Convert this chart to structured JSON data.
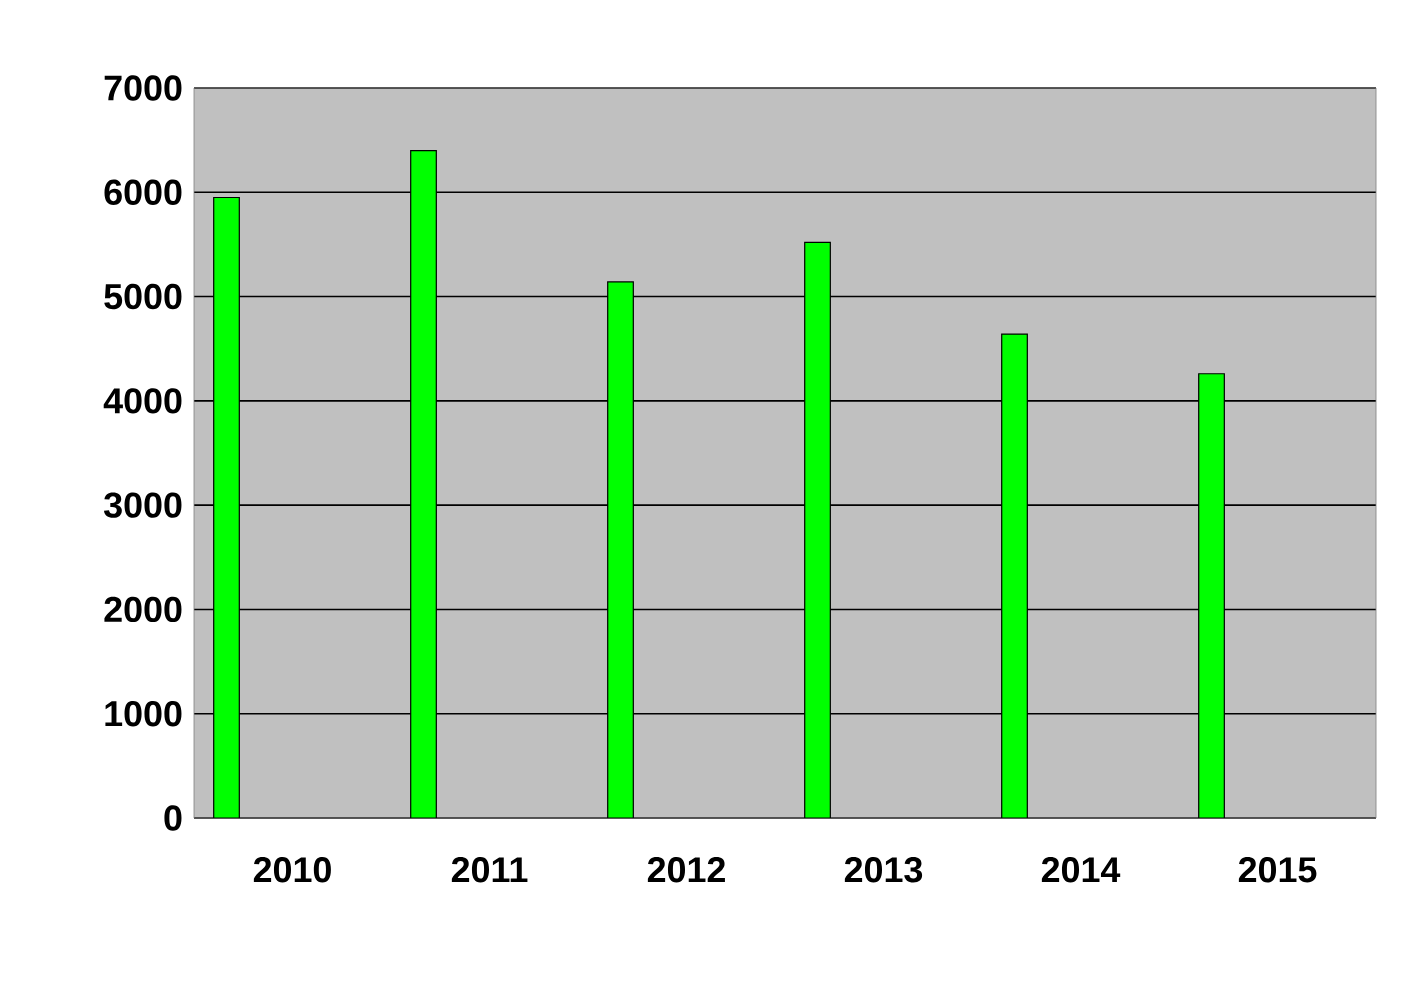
{
  "chart_data": {
    "type": "bar",
    "categories": [
      "2010",
      "2011",
      "2012",
      "2013",
      "2014",
      "2015"
    ],
    "values": [
      5950,
      6400,
      5140,
      5520,
      4640,
      4260
    ],
    "color": "#00ff00",
    "ylim": [
      0,
      7000
    ],
    "yticks": [
      0,
      1000,
      2000,
      3000,
      4000,
      5000,
      6000,
      7000
    ],
    "grid": "y"
  }
}
